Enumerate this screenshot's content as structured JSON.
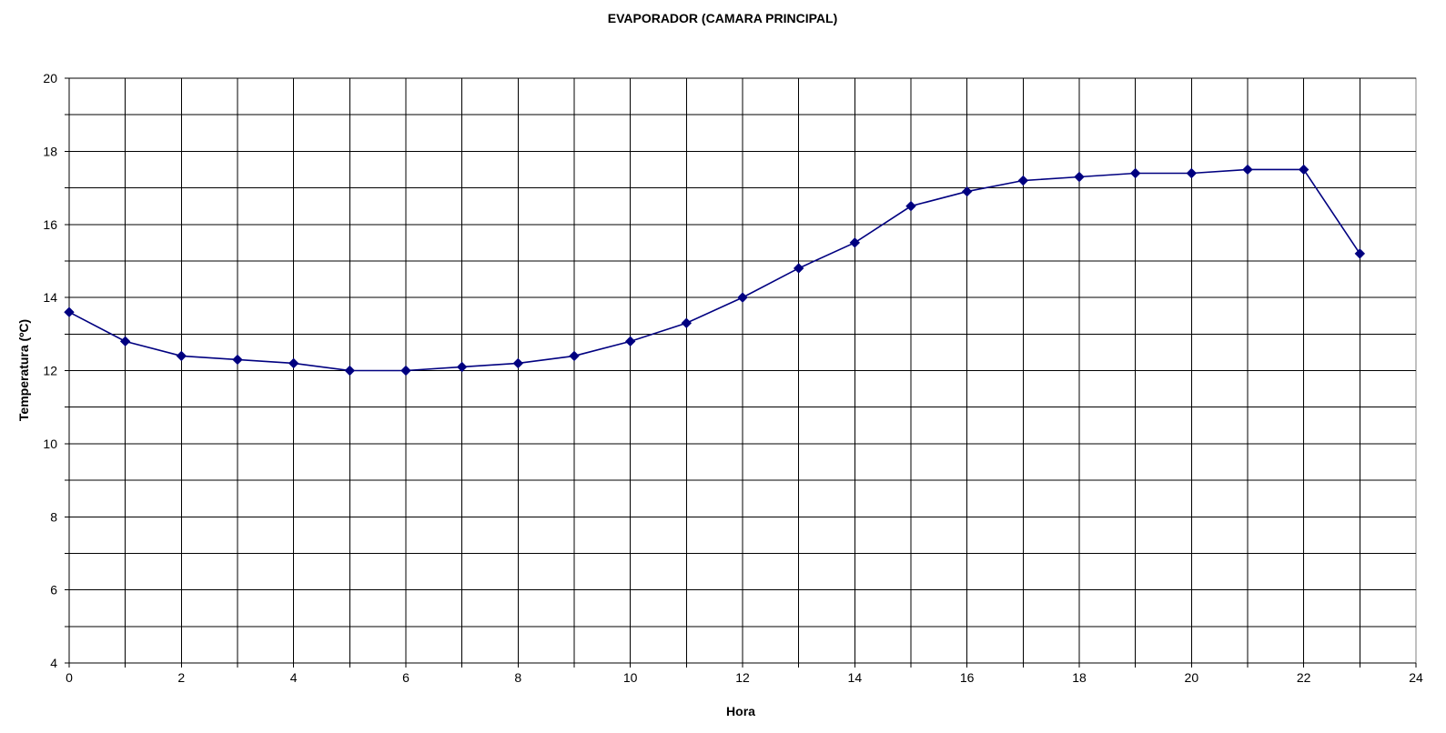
{
  "chart_data": {
    "type": "line",
    "title": "EVAPORADOR (CAMARA PRINCIPAL)",
    "xlabel": "Hora",
    "ylabel": "Temperatura (ºC)",
    "xlim": [
      0,
      24
    ],
    "ylim": [
      4,
      20
    ],
    "x_ticks": [
      0,
      2,
      4,
      6,
      8,
      10,
      12,
      14,
      16,
      18,
      20,
      22,
      24
    ],
    "y_ticks": [
      4,
      6,
      8,
      10,
      12,
      14,
      16,
      18,
      20
    ],
    "x_gridlines_every": 1,
    "y_gridlines_every": 1,
    "grid": true,
    "legend": "none",
    "series": [
      {
        "color": "#000080",
        "marker": "diamond",
        "x": [
          0,
          1,
          2,
          3,
          4,
          5,
          6,
          7,
          8,
          9,
          10,
          11,
          12,
          13,
          14,
          15,
          16,
          17,
          18,
          19,
          20,
          21,
          22,
          23
        ],
        "y": [
          13.6,
          12.8,
          12.4,
          12.3,
          12.2,
          12.0,
          12.0,
          12.1,
          12.2,
          12.4,
          12.8,
          13.3,
          14.0,
          14.8,
          15.5,
          16.5,
          16.9,
          17.2,
          17.3,
          17.4,
          17.4,
          17.5,
          17.5,
          15.2
        ]
      }
    ]
  }
}
